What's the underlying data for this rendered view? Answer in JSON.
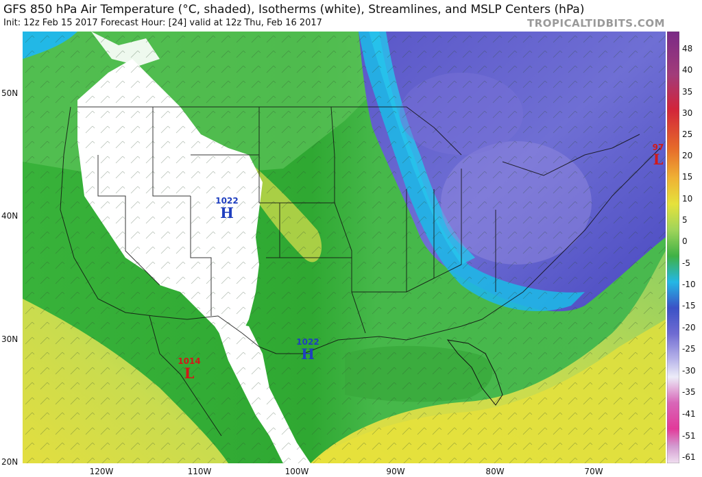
{
  "header": {
    "title": "GFS 850 hPa Air Temperature (°C, shaded), Isotherms (white), Streamlines, and MSLP Centers (hPa)",
    "subtitle": "Init: 12z Feb 15 2017   Forecast Hour: [24]   valid at 12z Thu, Feb 16 2017",
    "brand": "TROPICALTIDBITS.COM"
  },
  "colors": {
    "high": "#1f3fbf",
    "low": "#d01919",
    "background": "#ffffff"
  },
  "map": {
    "lat_labels": [
      "50N",
      "40N",
      "30N",
      "20N"
    ],
    "lon_labels": [
      "120W",
      "110W",
      "100W",
      "90W",
      "80W",
      "70W"
    ],
    "centers": [
      {
        "type": "H",
        "value": "1022",
        "symbol": "H"
      },
      {
        "type": "H",
        "value": "1022",
        "symbol": "H"
      },
      {
        "type": "L",
        "value": "1014",
        "symbol": "L"
      },
      {
        "type": "L",
        "value": "97",
        "symbol": "L"
      }
    ]
  },
  "colorbar": {
    "labels": [
      "48",
      "40",
      "35",
      "30",
      "25",
      "20",
      "15",
      "10",
      "5",
      "0",
      "-5",
      "-10",
      "-15",
      "-20",
      "-25",
      "-30",
      "-35",
      "-41",
      "-51",
      "-61"
    ]
  }
}
